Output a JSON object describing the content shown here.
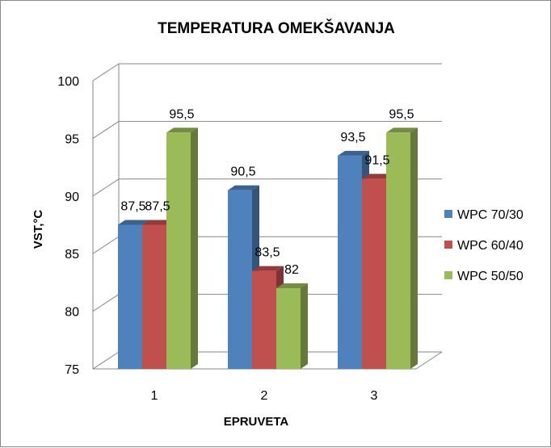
{
  "chart_data": {
    "type": "bar",
    "title": "TEMPERATURA OMEKŠAVANJA",
    "xlabel": "EPRUVETA",
    "ylabel": "VST,°C",
    "categories": [
      "1",
      "2",
      "3"
    ],
    "series": [
      {
        "name": "WPC 70/30",
        "color": "#4f81bd",
        "values": [
          87.5,
          90.5,
          93.5
        ],
        "labels": [
          "87,5",
          "90,5",
          "93,5"
        ]
      },
      {
        "name": "WPC 60/40",
        "color": "#c0504d",
        "values": [
          87.5,
          83.5,
          91.5
        ],
        "labels": [
          "87,5",
          "83,5",
          "91,5"
        ]
      },
      {
        "name": "WPC 50/50",
        "color": "#9bbb59",
        "values": [
          95.5,
          82,
          95.5
        ],
        "labels": [
          "95,5",
          "82",
          "95,5"
        ]
      }
    ],
    "ylim": [
      75,
      100
    ],
    "yticks": [
      75,
      80,
      85,
      90,
      95,
      100
    ],
    "grid": true,
    "legend_position": "right",
    "style": "3d-column"
  }
}
